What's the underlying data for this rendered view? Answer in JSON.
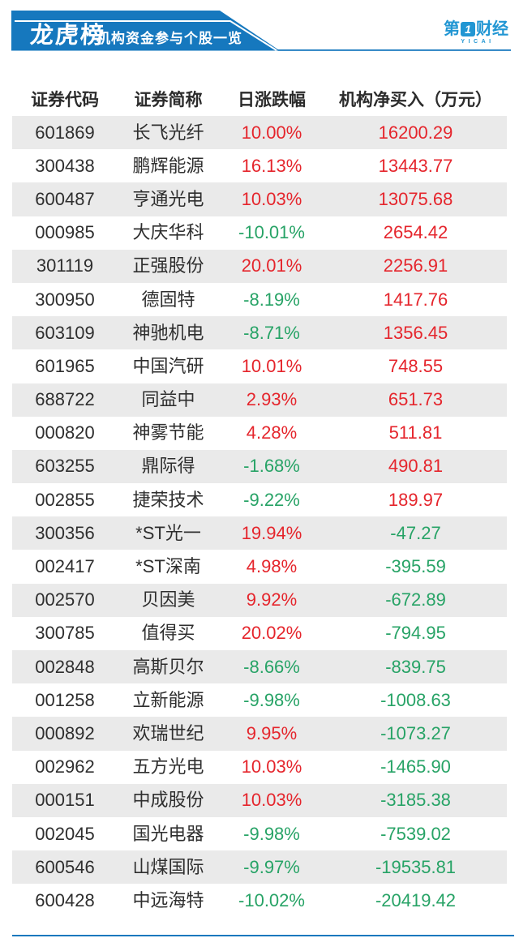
{
  "banner": {
    "title": "龙虎榜",
    "subtitle": "机构资金参与个股一览"
  },
  "logo": {
    "part1": "第",
    "mark": "1",
    "part2": "财经",
    "sub": "YICAI"
  },
  "colors": {
    "banner_blue": "#1678be",
    "logo_blue": "#2196d3",
    "up": "#e5252c",
    "down": "#27a366",
    "text": "#2e2e2e",
    "row_alt": "#eaeaea"
  },
  "chart_data": {
    "type": "table",
    "title": "龙虎榜",
    "subtitle": "机构资金参与个股一览",
    "columns": [
      "证券代码",
      "证券简称",
      "日涨跌幅",
      "机构净买入（万元）"
    ],
    "rows": [
      {
        "code": "601869",
        "name": "长飞光纤",
        "change": "10.00%",
        "change_dir": "up",
        "net": "16200.29",
        "net_dir": "up"
      },
      {
        "code": "300438",
        "name": "鹏辉能源",
        "change": "16.13%",
        "change_dir": "up",
        "net": "13443.77",
        "net_dir": "up"
      },
      {
        "code": "600487",
        "name": "亨通光电",
        "change": "10.03%",
        "change_dir": "up",
        "net": "13075.68",
        "net_dir": "up"
      },
      {
        "code": "000985",
        "name": "大庆华科",
        "change": "-10.01%",
        "change_dir": "down",
        "net": "2654.42",
        "net_dir": "up"
      },
      {
        "code": "301119",
        "name": "正强股份",
        "change": "20.01%",
        "change_dir": "up",
        "net": "2256.91",
        "net_dir": "up"
      },
      {
        "code": "300950",
        "name": "德固特",
        "change": "-8.19%",
        "change_dir": "down",
        "net": "1417.76",
        "net_dir": "up"
      },
      {
        "code": "603109",
        "name": "神驰机电",
        "change": "-8.71%",
        "change_dir": "down",
        "net": "1356.45",
        "net_dir": "up"
      },
      {
        "code": "601965",
        "name": "中国汽研",
        "change": "10.01%",
        "change_dir": "up",
        "net": "748.55",
        "net_dir": "up"
      },
      {
        "code": "688722",
        "name": "同益中",
        "change": "2.93%",
        "change_dir": "up",
        "net": "651.73",
        "net_dir": "up"
      },
      {
        "code": "000820",
        "name": "神雾节能",
        "change": "4.28%",
        "change_dir": "up",
        "net": "511.81",
        "net_dir": "up"
      },
      {
        "code": "603255",
        "name": "鼎际得",
        "change": "-1.68%",
        "change_dir": "down",
        "net": "490.81",
        "net_dir": "up"
      },
      {
        "code": "002855",
        "name": "捷荣技术",
        "change": "-9.22%",
        "change_dir": "down",
        "net": "189.97",
        "net_dir": "up"
      },
      {
        "code": "300356",
        "name": "*ST光一",
        "change": "19.94%",
        "change_dir": "up",
        "net": "-47.27",
        "net_dir": "down"
      },
      {
        "code": "002417",
        "name": "*ST深南",
        "change": "4.98%",
        "change_dir": "up",
        "net": "-395.59",
        "net_dir": "down"
      },
      {
        "code": "002570",
        "name": "贝因美",
        "change": "9.92%",
        "change_dir": "up",
        "net": "-672.89",
        "net_dir": "down"
      },
      {
        "code": "300785",
        "name": "值得买",
        "change": "20.02%",
        "change_dir": "up",
        "net": "-794.95",
        "net_dir": "down"
      },
      {
        "code": "002848",
        "name": "高斯贝尔",
        "change": "-8.66%",
        "change_dir": "down",
        "net": "-839.75",
        "net_dir": "down"
      },
      {
        "code": "001258",
        "name": "立新能源",
        "change": "-9.98%",
        "change_dir": "down",
        "net": "-1008.63",
        "net_dir": "down"
      },
      {
        "code": "000892",
        "name": "欢瑞世纪",
        "change": "9.95%",
        "change_dir": "up",
        "net": "-1073.27",
        "net_dir": "down"
      },
      {
        "code": "002962",
        "name": "五方光电",
        "change": "10.03%",
        "change_dir": "up",
        "net": "-1465.90",
        "net_dir": "down"
      },
      {
        "code": "000151",
        "name": "中成股份",
        "change": "10.03%",
        "change_dir": "up",
        "net": "-3185.38",
        "net_dir": "down"
      },
      {
        "code": "002045",
        "name": "国光电器",
        "change": "-9.98%",
        "change_dir": "down",
        "net": "-7539.02",
        "net_dir": "down"
      },
      {
        "code": "600546",
        "name": "山煤国际",
        "change": "-9.97%",
        "change_dir": "down",
        "net": "-19535.81",
        "net_dir": "down"
      },
      {
        "code": "600428",
        "name": "中远海特",
        "change": "-10.02%",
        "change_dir": "down",
        "net": "-20419.42",
        "net_dir": "down"
      }
    ]
  }
}
